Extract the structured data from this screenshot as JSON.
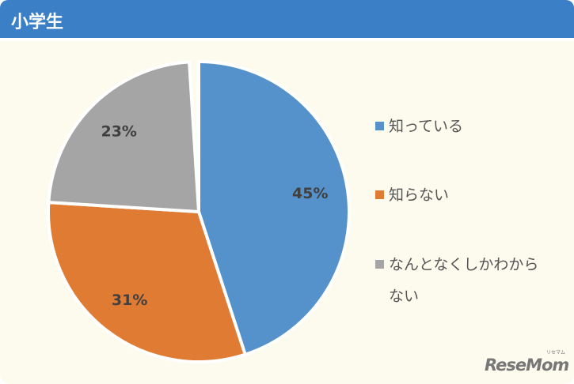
{
  "chart_data": {
    "type": "pie",
    "title": "小学生",
    "categories": [
      "知っている",
      "知らない",
      "なんとなくしかわからない"
    ],
    "values": [
      45,
      31,
      23
    ],
    "value_labels": [
      "45%",
      "31%",
      "23%"
    ],
    "colors": [
      "#5592cb",
      "#e07b33",
      "#a5a5a5"
    ],
    "legend": "right"
  },
  "watermark": {
    "text": "ReseMom",
    "small": "リセマム"
  }
}
